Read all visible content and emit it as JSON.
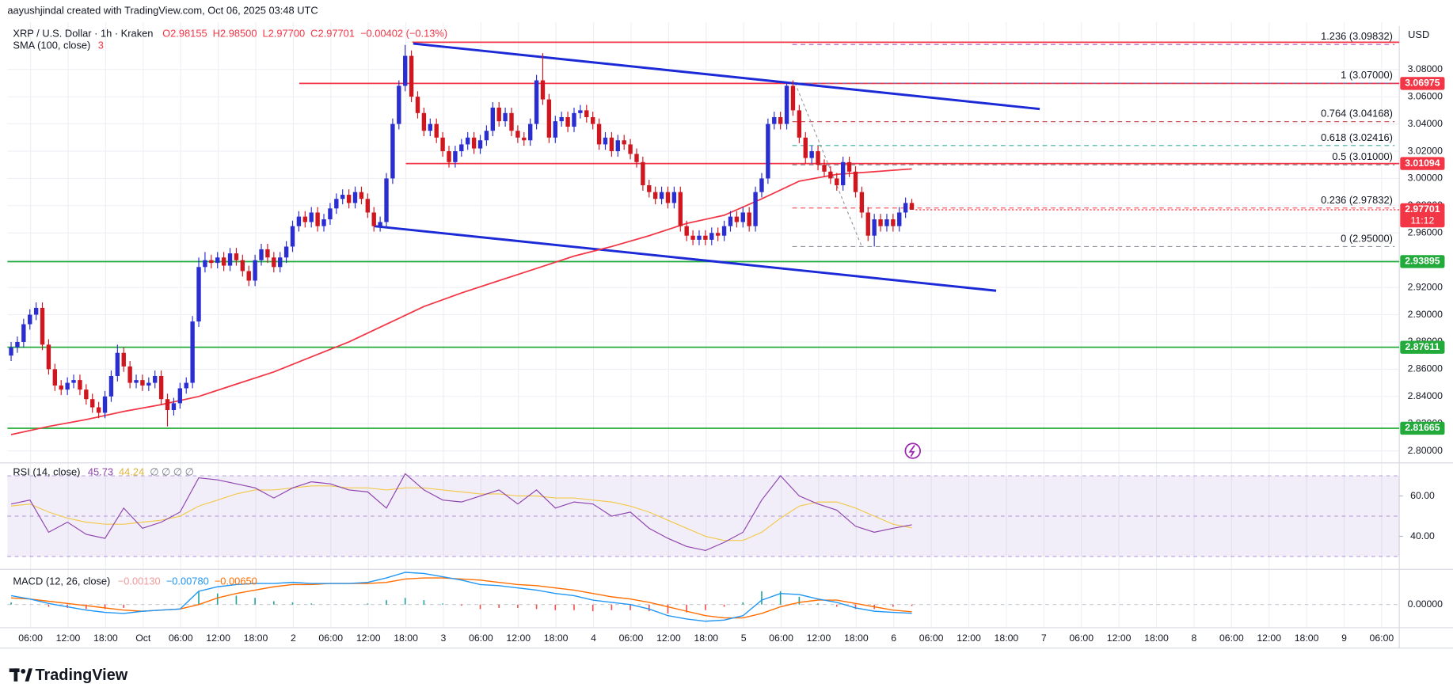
{
  "chart_data": {
    "type": "candlestick",
    "credit": "aayushjindal created with TradingView.com, Oct 06, 2025 03:48 UTC",
    "symbol": "XRP / U.S. Dollar · 1h · Kraken",
    "ohlc_labels": [
      "O2.98155",
      "H2.98500",
      "L2.97700",
      "C2.97701",
      "−0.00402 (−0.13%)"
    ],
    "sma_label": "SMA (100, close)",
    "sma_value_label": "3",
    "currency": "USD",
    "brand": "TradingView",
    "time_labels": [
      "06:00",
      "12:00",
      "18:00",
      "Oct",
      "06:00",
      "12:00",
      "18:00",
      "2",
      "06:00",
      "12:00",
      "18:00",
      "3",
      "06:00",
      "12:00",
      "18:00",
      "4",
      "06:00",
      "12:00",
      "18:00",
      "5",
      "06:00",
      "12:00",
      "18:00",
      "6",
      "06:00",
      "12:00",
      "18:00",
      "7",
      "06:00",
      "12:00",
      "18:00",
      "8",
      "06:00",
      "12:00",
      "18:00",
      "9",
      "06:00"
    ],
    "ylim": [
      2.7912,
      3.1106
    ],
    "yticks": [
      {
        "value": 3.08,
        "label": "3.08000"
      },
      {
        "value": 3.06,
        "label": "3.06000"
      },
      {
        "value": 3.04,
        "label": "3.04000"
      },
      {
        "value": 3.02,
        "label": "3.02000"
      },
      {
        "value": 3.0,
        "label": "3.00000"
      },
      {
        "value": 2.98,
        "label": "2.98000"
      },
      {
        "value": 2.96,
        "label": "2.96000"
      },
      {
        "value": 2.94,
        "label": "2.94000"
      },
      {
        "value": 2.92,
        "label": "2.92000"
      },
      {
        "value": 2.9,
        "label": "2.90000"
      },
      {
        "value": 2.88,
        "label": "2.88000"
      },
      {
        "value": 2.86,
        "label": "2.86000"
      },
      {
        "value": 2.84,
        "label": "2.84000"
      },
      {
        "value": 2.82,
        "label": "2.82000"
      },
      {
        "value": 2.8,
        "label": "2.80000"
      }
    ],
    "grid": true,
    "up_color": "#2a2ed1",
    "down_color": "#d0161e",
    "candles": {
      "open": [
        2.87,
        2.876,
        2.88,
        2.893,
        2.9,
        2.905,
        2.878,
        2.86,
        2.848,
        2.845,
        2.85,
        2.852,
        2.845,
        2.838,
        2.832,
        2.828,
        2.84,
        2.855,
        2.872,
        2.862,
        2.85,
        2.852,
        2.848,
        2.85,
        2.855,
        2.838,
        2.83,
        2.835,
        2.846,
        2.85,
        2.895,
        2.935,
        2.94,
        2.938,
        2.942,
        2.936,
        2.945,
        2.94,
        2.932,
        2.925,
        2.94,
        2.948,
        2.942,
        2.935,
        2.942,
        2.95,
        2.965,
        2.972,
        2.968,
        2.975,
        2.965,
        2.97,
        2.978,
        2.985,
        2.988,
        2.982,
        2.99,
        2.985,
        2.975,
        2.965,
        2.968,
        3.0,
        3.04,
        3.068,
        3.09,
        3.06,
        3.048,
        3.035,
        3.04,
        3.03,
        3.02,
        3.012,
        3.02,
        3.025,
        3.03,
        3.022,
        3.028,
        3.035,
        3.052,
        3.042,
        3.048,
        3.035,
        3.03,
        3.028,
        3.04,
        3.072,
        3.058,
        3.03,
        3.042,
        3.045,
        3.038,
        3.048,
        3.05,
        3.045,
        3.04,
        3.025,
        3.03,
        3.02,
        3.028,
        3.025,
        3.018,
        3.012,
        2.995,
        2.99,
        2.985,
        2.99,
        2.982,
        2.99,
        2.965,
        2.958,
        2.955,
        2.958,
        2.955,
        2.96,
        2.958,
        2.965,
        2.972,
        2.968,
        2.975,
        2.965,
        2.99,
        3.0,
        3.04,
        3.045,
        3.04,
        3.068,
        3.05,
        3.03,
        3.015,
        3.02,
        3.01,
        3.005,
        3.0,
        2.995,
        3.012,
        3.005,
        2.99,
        2.975,
        2.958,
        2.97,
        2.965,
        2.97,
        2.965,
        2.975,
        2.982
      ],
      "high": [
        2.88,
        2.884,
        2.897,
        2.904,
        2.909,
        2.909,
        2.882,
        2.864,
        2.852,
        2.854,
        2.856,
        2.856,
        2.849,
        2.842,
        2.836,
        2.844,
        2.859,
        2.878,
        2.876,
        2.866,
        2.856,
        2.856,
        2.854,
        2.859,
        2.859,
        2.842,
        2.839,
        2.85,
        2.854,
        2.899,
        2.942,
        2.946,
        2.944,
        2.946,
        2.946,
        2.949,
        2.949,
        2.944,
        2.936,
        2.944,
        2.952,
        2.952,
        2.946,
        2.946,
        2.954,
        2.969,
        2.976,
        2.976,
        2.979,
        2.979,
        2.974,
        2.982,
        2.989,
        2.992,
        2.992,
        2.994,
        2.994,
        2.989,
        2.979,
        2.972,
        3.004,
        3.044,
        3.072,
        3.098,
        3.094,
        3.064,
        3.052,
        3.044,
        3.044,
        3.034,
        3.024,
        3.024,
        3.029,
        3.034,
        3.034,
        3.032,
        3.039,
        3.056,
        3.056,
        3.052,
        3.052,
        3.039,
        3.034,
        3.044,
        3.076,
        3.092,
        3.062,
        3.046,
        3.049,
        3.049,
        3.052,
        3.054,
        3.054,
        3.049,
        3.044,
        3.034,
        3.034,
        3.032,
        3.032,
        3.029,
        3.022,
        3.016,
        2.999,
        2.994,
        2.994,
        2.994,
        2.994,
        2.994,
        2.969,
        2.962,
        2.962,
        2.962,
        2.964,
        2.964,
        2.969,
        2.976,
        2.976,
        2.979,
        2.979,
        2.994,
        3.004,
        3.044,
        3.049,
        3.049,
        3.07,
        3.072,
        3.054,
        3.034,
        3.024,
        3.024,
        3.014,
        3.009,
        3.004,
        3.016,
        3.016,
        3.009,
        2.994,
        2.979,
        2.974,
        2.974,
        2.974,
        2.974,
        2.979,
        2.986,
        2.985
      ],
      "low": [
        2.866,
        2.872,
        2.876,
        2.889,
        2.896,
        2.874,
        2.856,
        2.844,
        2.841,
        2.841,
        2.846,
        2.841,
        2.834,
        2.828,
        2.824,
        2.824,
        2.836,
        2.851,
        2.858,
        2.846,
        2.846,
        2.844,
        2.844,
        2.846,
        2.834,
        2.818,
        2.826,
        2.831,
        2.842,
        2.846,
        2.891,
        2.931,
        2.934,
        2.934,
        2.932,
        2.932,
        2.936,
        2.928,
        2.921,
        2.921,
        2.936,
        2.938,
        2.931,
        2.931,
        2.938,
        2.946,
        2.961,
        2.964,
        2.964,
        2.961,
        2.961,
        2.966,
        2.974,
        2.981,
        2.978,
        2.978,
        2.981,
        2.971,
        2.961,
        2.961,
        2.964,
        2.996,
        3.036,
        3.064,
        3.056,
        3.044,
        3.031,
        3.031,
        3.026,
        3.016,
        3.008,
        3.008,
        3.016,
        3.021,
        3.018,
        3.018,
        3.024,
        3.031,
        3.038,
        3.038,
        3.031,
        3.026,
        3.024,
        3.024,
        3.036,
        3.054,
        3.026,
        3.026,
        3.038,
        3.034,
        3.034,
        3.044,
        3.041,
        3.036,
        3.021,
        3.021,
        3.016,
        3.016,
        3.021,
        3.014,
        3.008,
        2.991,
        2.986,
        2.981,
        2.981,
        2.978,
        2.978,
        2.961,
        2.954,
        2.951,
        2.951,
        2.951,
        2.951,
        2.954,
        2.954,
        2.961,
        2.964,
        2.964,
        2.961,
        2.961,
        2.986,
        2.996,
        3.036,
        3.036,
        3.036,
        3.046,
        3.026,
        3.011,
        3.011,
        3.006,
        3.001,
        2.996,
        2.991,
        2.991,
        3.001,
        2.986,
        2.971,
        2.954,
        2.95,
        2.961,
        2.961,
        2.961,
        2.961,
        2.971,
        2.977
      ],
      "close": [
        2.876,
        2.88,
        2.893,
        2.9,
        2.905,
        2.878,
        2.86,
        2.848,
        2.845,
        2.85,
        2.852,
        2.845,
        2.838,
        2.832,
        2.828,
        2.84,
        2.855,
        2.872,
        2.862,
        2.85,
        2.852,
        2.848,
        2.85,
        2.855,
        2.838,
        2.83,
        2.835,
        2.846,
        2.85,
        2.895,
        2.935,
        2.94,
        2.938,
        2.942,
        2.936,
        2.945,
        2.94,
        2.932,
        2.925,
        2.94,
        2.948,
        2.942,
        2.935,
        2.942,
        2.95,
        2.965,
        2.972,
        2.968,
        2.975,
        2.965,
        2.97,
        2.978,
        2.985,
        2.988,
        2.982,
        2.99,
        2.985,
        2.975,
        2.965,
        2.968,
        3.0,
        3.04,
        3.068,
        3.09,
        3.06,
        3.048,
        3.035,
        3.04,
        3.03,
        3.02,
        3.012,
        3.02,
        3.025,
        3.03,
        3.022,
        3.028,
        3.035,
        3.052,
        3.042,
        3.048,
        3.035,
        3.03,
        3.028,
        3.04,
        3.072,
        3.058,
        3.03,
        3.042,
        3.045,
        3.038,
        3.048,
        3.05,
        3.045,
        3.04,
        3.025,
        3.03,
        3.02,
        3.028,
        3.025,
        3.018,
        3.012,
        2.995,
        2.99,
        2.985,
        2.99,
        2.982,
        2.99,
        2.965,
        2.958,
        2.955,
        2.958,
        2.955,
        2.96,
        2.958,
        2.965,
        2.972,
        2.968,
        2.975,
        2.965,
        2.99,
        3.0,
        3.04,
        3.045,
        3.04,
        3.068,
        3.05,
        3.03,
        3.015,
        3.02,
        3.01,
        3.005,
        3.0,
        2.995,
        3.012,
        3.005,
        2.99,
        2.975,
        2.958,
        2.97,
        2.965,
        2.97,
        2.965,
        2.975,
        2.982,
        2.977
      ]
    },
    "sma": {
      "color": "#f23645",
      "values": [
        2.812,
        2.818,
        2.823,
        2.829,
        2.834,
        2.84,
        2.849,
        2.858,
        2.869,
        2.88,
        2.893,
        2.906,
        2.916,
        2.925,
        2.934,
        2.943,
        2.95,
        2.958,
        2.967,
        2.973,
        2.985,
        2.998,
        3.003,
        3.005,
        3.007
      ]
    },
    "levels": [
      {
        "value": 3.1,
        "color": "#f23645",
        "badge": false
      },
      {
        "value": 3.06975,
        "color": "#f23645",
        "badge": true
      },
      {
        "value": 3.01094,
        "color": "#f23645",
        "badge": true
      },
      {
        "value": 2.93895,
        "color": "#22ab3a",
        "badge": true
      },
      {
        "value": 2.87611,
        "color": "#22ab3a",
        "badge": true
      },
      {
        "value": 2.81665,
        "color": "#22ab3a",
        "badge": true
      }
    ],
    "trendlines": [
      {
        "color": "#1b2ad6",
        "prices": [
          3.099,
          3.051
        ]
      },
      {
        "color": "#1b2ad6",
        "prices": [
          2.965,
          2.9176
        ]
      }
    ],
    "fib_levels": [
      {
        "label": "1.236 (3.09832)",
        "value": 3.09832,
        "color": "#9c27b0"
      },
      {
        "label": "1 (3.07000)",
        "value": 3.07,
        "color": "#5b8fd6"
      },
      {
        "label": "0.764 (3.04168)",
        "value": 3.04168,
        "color": "#b71c1c"
      },
      {
        "label": "0.618 (3.02416)",
        "value": 3.02416,
        "color": "#089981"
      },
      {
        "label": "0.5 (3.01000)",
        "value": 3.01,
        "color": "#555a66"
      },
      {
        "label": "0.236 (2.97832)",
        "value": 2.97832,
        "color": "#f23645"
      },
      {
        "label": "0 (2.95000)",
        "value": 2.95,
        "color": "#787b86"
      }
    ],
    "last_price": 2.97701,
    "countdown": "11:12",
    "price_color": "#f23645",
    "rsi": {
      "name": "RSI (14, close)",
      "color": "#8e44ad",
      "values": [
        56,
        58,
        42,
        47,
        41,
        39,
        54,
        44,
        47,
        52,
        69,
        68,
        66,
        64,
        59,
        64,
        67,
        66,
        63,
        62,
        54,
        71,
        63,
        58,
        57,
        60,
        63,
        56,
        63,
        54,
        57,
        56,
        50,
        52,
        44,
        39,
        35,
        33,
        37,
        42,
        58,
        70,
        60,
        56,
        53,
        45,
        42,
        44,
        45.73
      ],
      "ma": {
        "color": "#f2c94c",
        "values": [
          55,
          56,
          52,
          49,
          47,
          46,
          46,
          47,
          48,
          50,
          55,
          58,
          61,
          63,
          63,
          64,
          65,
          65,
          64,
          64,
          63,
          64,
          64,
          63,
          62,
          61,
          61,
          60,
          60,
          59,
          59,
          58,
          57,
          55,
          52,
          48,
          44,
          40,
          38,
          38,
          42,
          49,
          55,
          57,
          57,
          54,
          50,
          46,
          44.24
        ]
      },
      "extra_label": "∅ ∅ ∅ ∅",
      "ylim": [
        25,
        75
      ],
      "yticks": [
        {
          "value": 60,
          "label": "60.00"
        },
        {
          "value": 40,
          "label": "40.00"
        }
      ],
      "band": [
        30,
        70
      ],
      "levels": [
        70,
        50,
        30
      ]
    },
    "macd": {
      "name": "MACD (12, 26, close)",
      "legend_values": [
        "−0.00130",
        "−0.00780",
        "−0.00650"
      ],
      "macd": {
        "color": "#2196f3",
        "values": [
          0.008,
          0.005,
          0.001,
          -0.002,
          -0.005,
          -0.007,
          -0.008,
          -0.006,
          -0.005,
          -0.004,
          0.012,
          0.016,
          0.018,
          0.019,
          0.019,
          0.02,
          0.019,
          0.019,
          0.019,
          0.02,
          0.024,
          0.029,
          0.028,
          0.025,
          0.022,
          0.018,
          0.017,
          0.015,
          0.013,
          0.01,
          0.008,
          0.004,
          0.002,
          0.0,
          -0.004,
          -0.01,
          -0.013,
          -0.015,
          -0.014,
          -0.01,
          0.004,
          0.01,
          0.009,
          0.005,
          0.002,
          -0.003,
          -0.006,
          -0.007,
          -0.0078
        ]
      },
      "signal": {
        "color": "#ff6d00",
        "values": [
          0.006,
          0.005,
          0.003,
          0.001,
          -0.001,
          -0.003,
          -0.005,
          -0.006,
          -0.005,
          -0.004,
          0.0,
          0.006,
          0.01,
          0.013,
          0.016,
          0.018,
          0.018,
          0.019,
          0.019,
          0.019,
          0.02,
          0.023,
          0.024,
          0.024,
          0.023,
          0.022,
          0.02,
          0.018,
          0.017,
          0.015,
          0.013,
          0.01,
          0.007,
          0.005,
          0.002,
          -0.002,
          -0.006,
          -0.01,
          -0.012,
          -0.012,
          -0.008,
          -0.002,
          0.002,
          0.004,
          0.004,
          0.001,
          -0.002,
          -0.005,
          -0.0065
        ]
      },
      "histogram": {
        "up_color": "#26a69a",
        "down_color": "#ef5350",
        "values": [
          0.002,
          0.0,
          -0.002,
          -0.003,
          -0.004,
          -0.004,
          -0.003,
          0.0,
          0.0,
          0.0,
          0.012,
          0.01,
          0.008,
          0.006,
          0.003,
          0.002,
          0.001,
          0.0,
          0.0,
          0.001,
          0.004,
          0.006,
          0.004,
          0.001,
          -0.001,
          -0.004,
          -0.003,
          -0.003,
          -0.004,
          -0.005,
          -0.005,
          -0.006,
          -0.005,
          -0.005,
          -0.006,
          -0.008,
          -0.007,
          -0.005,
          -0.002,
          0.002,
          0.012,
          0.012,
          0.007,
          0.001,
          -0.002,
          -0.004,
          -0.004,
          -0.002,
          -0.0013
        ]
      },
      "ylim": [
        -0.0208,
        0.0308
      ],
      "yticks": [
        {
          "value": 0,
          "label": "0.00000"
        }
      ]
    }
  }
}
